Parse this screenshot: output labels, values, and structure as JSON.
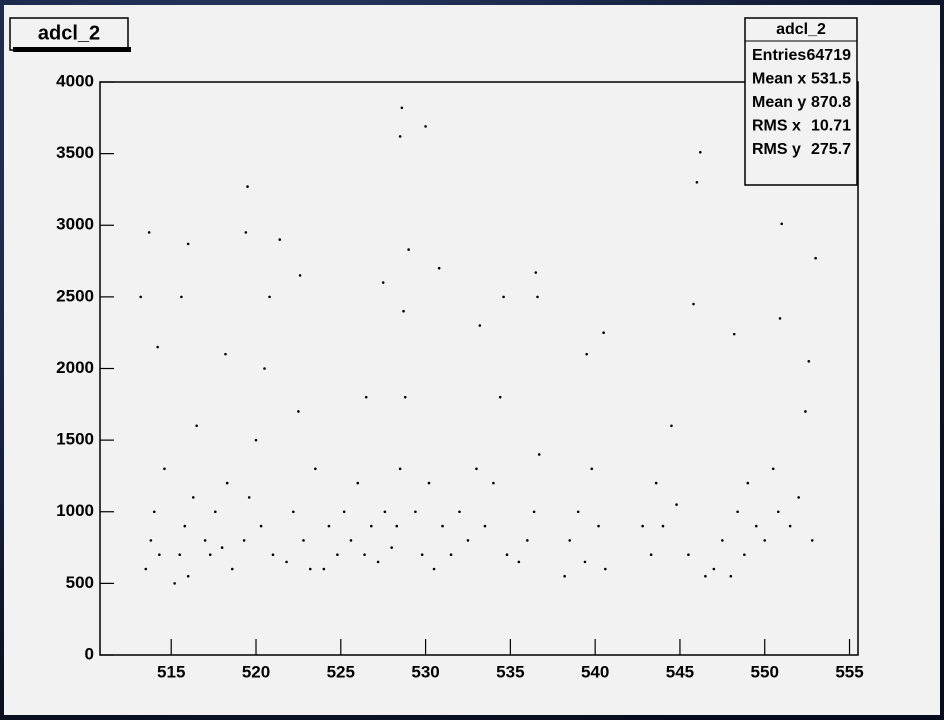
{
  "chart_data": {
    "type": "scatter",
    "title": "adcl_2",
    "color": "#000000",
    "xlim": [
      510.8,
      555.5
    ],
    "ylim": [
      0,
      4000
    ],
    "xticks": [
      515,
      520,
      525,
      530,
      535,
      540,
      545,
      550,
      555
    ],
    "yticks": [
      0,
      500,
      1000,
      1500,
      2000,
      2500,
      3000,
      3500,
      4000
    ],
    "x": [
      513.5,
      513.8,
      514,
      514.3,
      514.6,
      513.2,
      513.7,
      514.2,
      515.2,
      515.5,
      515.8,
      516,
      516.3,
      515.6,
      516,
      516.5,
      517,
      517.3,
      517.6,
      518,
      518.3,
      518.6,
      518.2,
      519.3,
      519.6,
      520,
      520.3,
      520.5,
      520.8,
      519.5,
      519.4,
      521,
      521.4,
      521.8,
      522.2,
      522.5,
      522.8,
      523.2,
      523.5,
      522.6,
      524,
      524.3,
      524.8,
      525.2,
      525.6,
      526,
      526.4,
      526.8,
      527.2,
      527.6,
      528,
      527.5,
      526.5,
      528.3,
      528.5,
      528.8,
      528.7,
      529,
      528.5,
      528.6,
      529.4,
      529.8,
      530.2,
      530,
      530.5,
      531,
      530.8,
      531.5,
      532,
      532.5,
      533,
      533.5,
      534,
      534.4,
      534.6,
      534.8,
      533.2,
      535.5,
      536,
      536.4,
      536.7,
      536.5,
      536.6,
      538.2,
      538.5,
      539,
      539.4,
      539.8,
      540.2,
      540.6,
      540.5,
      539.5,
      542.8,
      543.3,
      543.6,
      544,
      544.5,
      544.8,
      545.5,
      545.8,
      546,
      546.2,
      546.5,
      547,
      547.5,
      548,
      548.4,
      548.2,
      548.8,
      549,
      549.5,
      550,
      550.5,
      550.8,
      551,
      550.9,
      551.5,
      552,
      552.4,
      552.6,
      552.8,
      553
    ],
    "y": [
      600,
      800,
      1000,
      700,
      1300,
      2500,
      2950,
      2150,
      500,
      700,
      900,
      550,
      1100,
      2500,
      2870,
      1600,
      800,
      700,
      1000,
      750,
      1200,
      600,
      2100,
      800,
      1100,
      1500,
      900,
      2000,
      2500,
      3270,
      2950,
      700,
      2900,
      650,
      1000,
      1700,
      800,
      600,
      1300,
      2650,
      600,
      900,
      700,
      1000,
      800,
      1200,
      700,
      900,
      650,
      1000,
      750,
      2600,
      1800,
      900,
      1300,
      1800,
      2400,
      2830,
      3620,
      3820,
      1000,
      700,
      1200,
      3690,
      600,
      900,
      2700,
      700,
      1000,
      800,
      1300,
      900,
      1200,
      1800,
      2500,
      700,
      2300,
      650,
      800,
      1000,
      1400,
      2670,
      2500,
      550,
      800,
      1000,
      650,
      1300,
      900,
      600,
      2250,
      2100,
      900,
      700,
      1200,
      900,
      1600,
      1050,
      700,
      2450,
      3300,
      3510,
      550,
      600,
      800,
      550,
      1000,
      2240,
      700,
      1200,
      900,
      800,
      1300,
      1000,
      3010,
      2350,
      900,
      1100,
      1700,
      2050,
      800,
      2770
    ],
    "stats": {
      "title": "adcl_2",
      "rows": [
        [
          "Entries",
          64719
        ],
        [
          "Mean x",
          531.5
        ],
        [
          "Mean y",
          870.8
        ],
        [
          "RMS x",
          10.71
        ],
        [
          "RMS y",
          275.7
        ]
      ]
    }
  }
}
